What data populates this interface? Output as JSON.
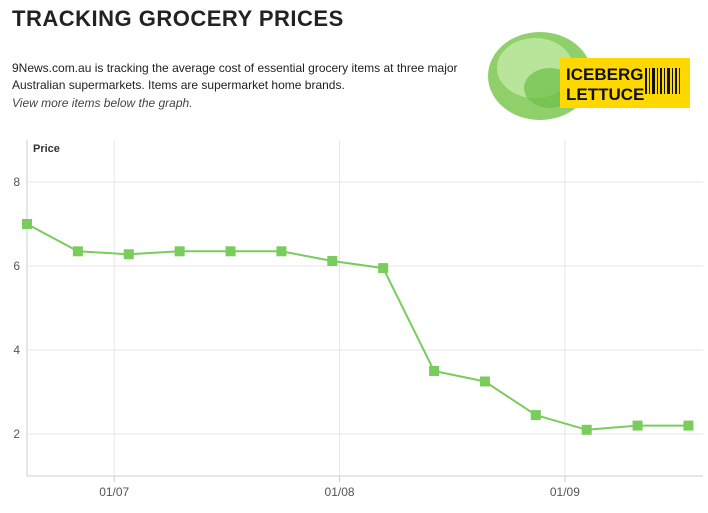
{
  "header": {
    "title": "TRACKING GROCERY PRICES",
    "description": "9News.com.au is tracking the average cost of essential grocery items at three major Australian supermarkets. Items are supermarket home brands.",
    "note": "View more items below the graph.",
    "badge": [
      "ICEBERG",
      "LETTUCE"
    ]
  },
  "chart_data": {
    "type": "line",
    "y_label": "Price",
    "x": [
      "19/06",
      "26/06",
      "03/07",
      "10/07",
      "17/07",
      "24/07",
      "31/07",
      "07/08",
      "14/08",
      "21/08",
      "28/08",
      "04/09",
      "11/09",
      "18/09"
    ],
    "series": [
      {
        "name": "Iceberg lettuce",
        "color": "#7acc5c",
        "values": [
          7.0,
          6.35,
          6.28,
          6.35,
          6.35,
          6.35,
          6.12,
          5.95,
          3.5,
          3.25,
          2.45,
          2.1,
          2.2,
          2.2
        ]
      }
    ],
    "xlim": [
      "19/06",
      "20/09"
    ],
    "xticks": [
      "01/07",
      "01/08",
      "01/09"
    ],
    "ylim": [
      1,
      9
    ],
    "yticks": [
      2,
      4,
      6,
      8
    ],
    "grid": true
  }
}
